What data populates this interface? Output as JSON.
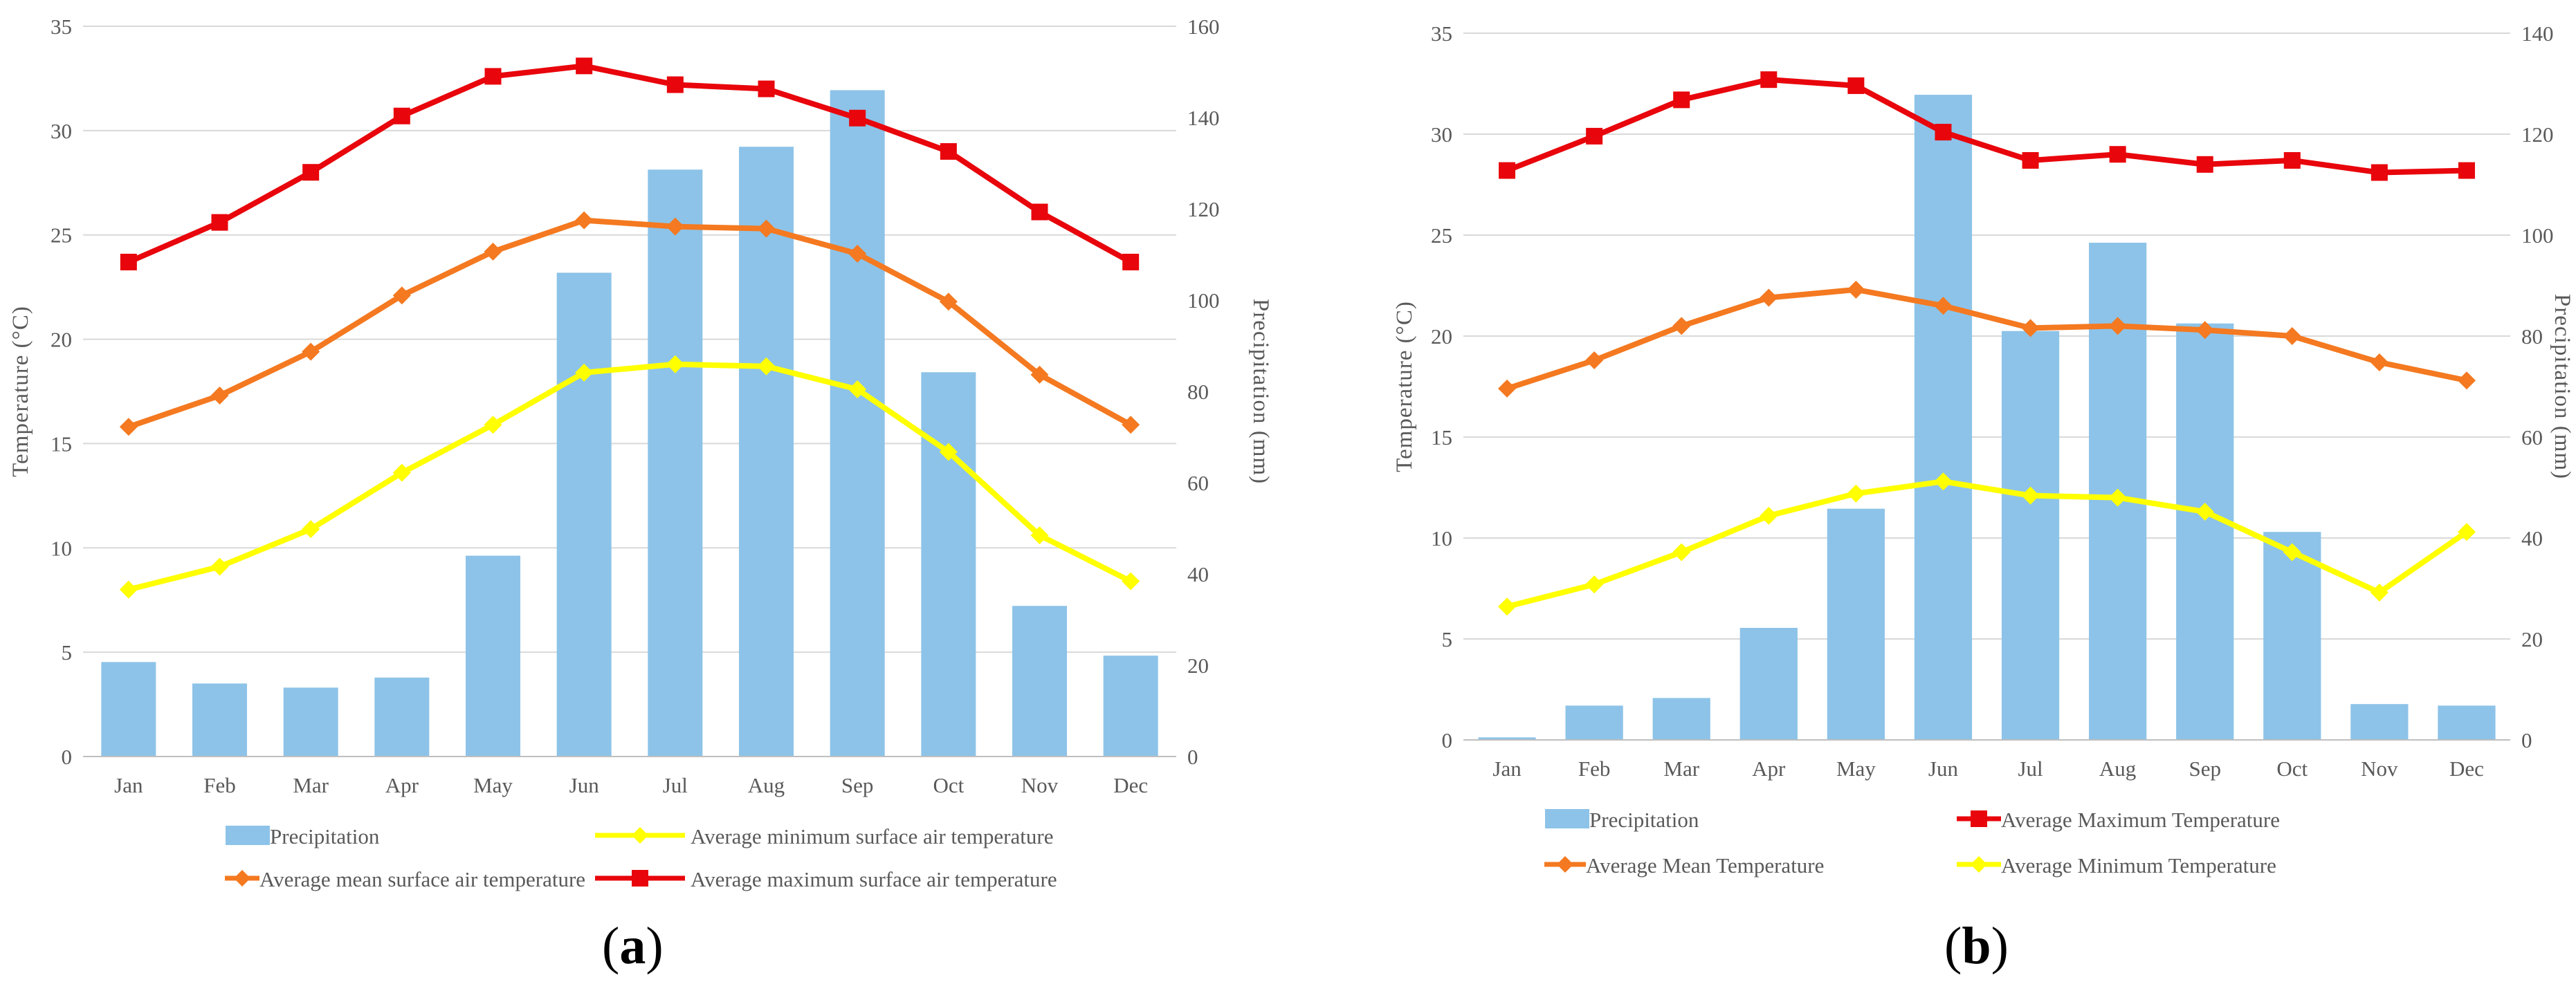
{
  "charts": [
    {
      "id": "a",
      "panel_label": "a",
      "left_axis_title": "Temperature (°C)",
      "right_axis_title": "Precipitation (mm)",
      "legend": [
        "Precipitation",
        "Average minimum surface air temperature",
        "Average mean surface air temperature",
        "Average maximum surface air temperature"
      ]
    },
    {
      "id": "b",
      "panel_label": "b",
      "left_axis_title": "Temperature (°C)",
      "right_axis_title": "Precipitation (mm)",
      "legend": [
        "Precipitation",
        "Average Maximum Temperature",
        "Average Mean Temperature",
        "Average Minimum Temperature"
      ]
    }
  ],
  "chart_data": [
    {
      "type": "bar",
      "panel": "a",
      "categories": [
        "Jan",
        "Feb",
        "Mar",
        "Apr",
        "May",
        "Jun",
        "Jul",
        "Aug",
        "Sep",
        "Oct",
        "Nov",
        "Dec"
      ],
      "ylabel": "Temperature (°C)",
      "y2label": "Precipitation (mm)",
      "ylim": [
        0,
        35
      ],
      "y2lim": [
        0,
        160
      ],
      "yticks": [
        0,
        5,
        10,
        15,
        20,
        25,
        30,
        35
      ],
      "y2ticks": [
        0,
        20,
        40,
        60,
        80,
        100,
        120,
        140,
        160
      ],
      "grid": true,
      "legend_position": "bottom",
      "series": [
        {
          "name": "Precipitation",
          "kind": "bar",
          "axis": "right",
          "color": "#8DC3E8",
          "values": [
            20.7,
            16.0,
            15.1,
            17.3,
            44.0,
            106.0,
            128.6,
            133.6,
            146.0,
            84.2,
            33.0,
            22.1
          ]
        },
        {
          "name": "Average minimum surface air temperature",
          "kind": "line",
          "axis": "left",
          "marker": "diamond",
          "color": "#FFFF00",
          "values": [
            8.0,
            9.1,
            10.9,
            13.6,
            15.9,
            18.4,
            18.8,
            18.7,
            17.6,
            14.6,
            10.6,
            8.4
          ]
        },
        {
          "name": "Average mean surface air temperature",
          "kind": "line",
          "axis": "left",
          "marker": "diamond",
          "color": "#F47920",
          "values": [
            15.8,
            17.3,
            19.4,
            22.1,
            24.2,
            25.7,
            25.4,
            25.3,
            24.1,
            21.8,
            18.3,
            15.9
          ]
        },
        {
          "name": "Average maximum surface air temperature",
          "kind": "line",
          "axis": "left",
          "marker": "square",
          "color": "#E8050B",
          "values": [
            23.7,
            25.6,
            28.0,
            30.7,
            32.6,
            33.1,
            32.2,
            32.0,
            30.6,
            29.0,
            26.1,
            23.7
          ]
        }
      ]
    },
    {
      "type": "bar",
      "panel": "b",
      "categories": [
        "Jan",
        "Feb",
        "Mar",
        "Apr",
        "May",
        "Jun",
        "Jul",
        "Aug",
        "Sep",
        "Oct",
        "Nov",
        "Dec"
      ],
      "ylabel": "Temperature (°C)",
      "y2label": "Precipitation (mm)",
      "ylim": [
        0,
        35
      ],
      "y2lim": [
        0,
        140
      ],
      "yticks": [
        0,
        5,
        10,
        15,
        20,
        25,
        30,
        35
      ],
      "y2ticks": [
        0,
        20,
        40,
        60,
        80,
        100,
        120,
        140
      ],
      "grid": true,
      "legend_position": "bottom",
      "series": [
        {
          "name": "Precipitation",
          "kind": "bar",
          "axis": "right",
          "color": "#8DC3E8",
          "values": [
            0.5,
            6.8,
            8.3,
            22.2,
            45.8,
            127.8,
            81.0,
            98.5,
            82.5,
            41.2,
            7.1,
            6.8
          ]
        },
        {
          "name": "Average Maximum Temperature",
          "kind": "line",
          "axis": "left",
          "marker": "square",
          "color": "#E8050B",
          "values": [
            28.2,
            29.9,
            31.7,
            32.7,
            32.4,
            30.1,
            28.7,
            29.0,
            28.5,
            28.7,
            28.1,
            28.2
          ]
        },
        {
          "name": "Average Mean Temperature",
          "kind": "line",
          "axis": "left",
          "marker": "diamond",
          "color": "#F47920",
          "values": [
            17.4,
            18.8,
            20.5,
            21.9,
            22.3,
            21.5,
            20.4,
            20.5,
            20.3,
            20.0,
            18.7,
            17.8
          ]
        },
        {
          "name": "Average Minimum Temperature",
          "kind": "line",
          "axis": "left",
          "marker": "diamond",
          "color": "#FFFF00",
          "values": [
            6.6,
            7.7,
            9.3,
            11.1,
            12.2,
            12.8,
            12.1,
            12.0,
            11.3,
            9.3,
            7.3,
            10.3
          ]
        }
      ]
    }
  ]
}
